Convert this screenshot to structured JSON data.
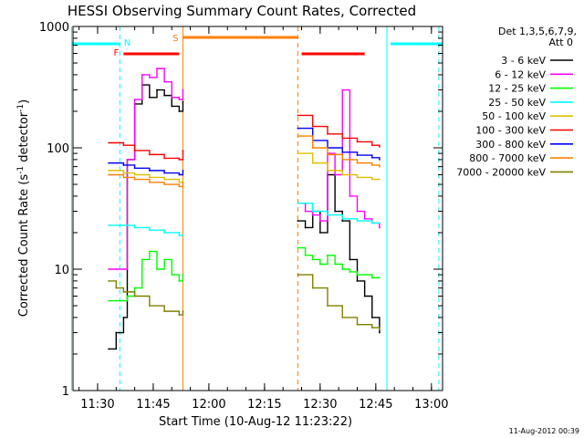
{
  "chart_data": {
    "type": "line",
    "title": "HESSI Observing Summary Count Rates, Corrected",
    "xlabel": "Start Time (10-Aug-12 11:23:22)",
    "ylabel_main": "Corrected Count Rate (s",
    "ylabel_sup1": "-1",
    "ylabel_mid": " detector",
    "ylabel_sup2": "-1",
    "ylabel_end": ")",
    "yscale": "log",
    "ylim": [
      1,
      1000
    ],
    "xlim": [
      "11:23:22",
      "13:03:00"
    ],
    "x_ticks": [
      "11:30",
      "11:45",
      "12:00",
      "12:15",
      "12:30",
      "12:45",
      "13:00"
    ],
    "y_ticks": [
      "1",
      "10",
      "100",
      "1000"
    ],
    "timestamp": "11-Aug-2012 00:39",
    "legend": {
      "placement": "right",
      "header1": "Det 1,3,5,6,7,9,",
      "header2": "Att 0"
    },
    "flags": [
      {
        "label": "F",
        "color": "#ff0000",
        "segments": [
          [
            "11:37",
            "11:52"
          ],
          [
            "12:25",
            "12:42"
          ]
        ]
      },
      {
        "label": "N",
        "color": "#00ffff",
        "segments": [
          [
            "11:23",
            "11:36"
          ],
          [
            "12:49",
            "13:03"
          ]
        ]
      },
      {
        "label": "S",
        "color": "#ff8000",
        "segments": [
          [
            "11:53",
            "12:24"
          ]
        ]
      }
    ],
    "vlines": [
      {
        "time": "11:23",
        "color": "#00ffff",
        "style": "solid"
      },
      {
        "time": "11:36",
        "color": "#00ffff",
        "style": "dashed"
      },
      {
        "time": "11:53",
        "color": "#ff8000",
        "style": "solid"
      },
      {
        "time": "12:24",
        "color": "#ff8000",
        "style": "dashed"
      },
      {
        "time": "12:48",
        "color": "#00ffff",
        "style": "solid"
      },
      {
        "time": "13:02",
        "color": "#00ffff",
        "style": "dashed"
      }
    ],
    "series": [
      {
        "name": "3 - 6 keV",
        "color": "#000000",
        "x": [
          "11:33",
          "11:35",
          "11:37",
          "11:38",
          "11:40",
          "11:42",
          "11:44",
          "11:46",
          "11:48",
          "11:50",
          "11:52",
          "11:53",
          "12:24",
          "12:26",
          "12:28",
          "12:30",
          "12:32",
          "12:34",
          "12:36",
          "12:38",
          "12:40",
          "12:42",
          "12:44",
          "12:46"
        ],
        "y": [
          2.2,
          3.0,
          4.0,
          80,
          230,
          330,
          260,
          300,
          270,
          220,
          200,
          240,
          25,
          22,
          30,
          20,
          60,
          30,
          25,
          12,
          8,
          6,
          4,
          3
        ]
      },
      {
        "name": "6 - 12 keV",
        "color": "#ff00ff",
        "x": [
          "11:33",
          "11:35",
          "11:37",
          "11:38",
          "11:40",
          "11:42",
          "11:44",
          "11:46",
          "11:48",
          "11:50",
          "11:52",
          "11:53",
          "12:24",
          "12:26",
          "12:28",
          "12:30",
          "12:32",
          "12:34",
          "12:36",
          "12:38",
          "12:40",
          "12:42",
          "12:44",
          "12:46"
        ],
        "y": [
          10,
          10,
          10,
          80,
          250,
          400,
          380,
          450,
          350,
          260,
          250,
          300,
          35,
          30,
          28,
          25,
          90,
          60,
          300,
          40,
          30,
          26,
          24,
          22
        ]
      },
      {
        "name": "12 - 25 keV",
        "color": "#00ff00",
        "x": [
          "11:33",
          "11:35",
          "11:37",
          "11:38",
          "11:40",
          "11:42",
          "11:44",
          "11:46",
          "11:48",
          "11:50",
          "11:52",
          "11:53",
          "12:24",
          "12:26",
          "12:28",
          "12:30",
          "12:32",
          "12:34",
          "12:36",
          "12:38",
          "12:40",
          "12:42",
          "12:44",
          "12:46"
        ],
        "y": [
          5.5,
          5.5,
          5.5,
          6,
          7,
          12,
          14,
          10,
          12,
          9,
          8,
          9,
          15,
          13,
          12,
          11,
          13,
          11,
          10,
          9.5,
          9,
          9,
          8.5,
          8.5
        ]
      },
      {
        "name": "25 - 50 keV",
        "color": "#00ffff",
        "x": [
          "11:33",
          "11:37",
          "11:40",
          "11:44",
          "11:48",
          "11:52",
          "11:53",
          "12:24",
          "12:28",
          "12:32",
          "12:36",
          "12:40",
          "12:44",
          "12:46"
        ],
        "y": [
          23,
          23,
          22,
          21,
          20,
          19,
          19,
          35,
          30,
          28,
          26,
          25,
          24,
          24
        ]
      },
      {
        "name": "50 - 100 keV",
        "color": "#e0c000",
        "x": [
          "11:33",
          "11:37",
          "11:40",
          "11:44",
          "11:48",
          "11:52",
          "11:53",
          "12:24",
          "12:28",
          "12:32",
          "12:36",
          "12:40",
          "12:44",
          "12:46"
        ],
        "y": [
          65,
          62,
          60,
          57,
          55,
          52,
          55,
          90,
          75,
          65,
          60,
          57,
          55,
          55
        ]
      },
      {
        "name": "100 - 300 keV",
        "color": "#ff0000",
        "x": [
          "11:33",
          "11:37",
          "11:40",
          "11:44",
          "11:48",
          "11:52",
          "11:53",
          "12:24",
          "12:28",
          "12:32",
          "12:36",
          "12:40",
          "12:44",
          "12:46"
        ],
        "y": [
          110,
          105,
          95,
          88,
          82,
          80,
          95,
          185,
          150,
          130,
          120,
          112,
          105,
          102
        ]
      },
      {
        "name": "300 - 800 keV",
        "color": "#0000ff",
        "x": [
          "11:33",
          "11:37",
          "11:40",
          "11:44",
          "11:48",
          "11:52",
          "11:53",
          "12:24",
          "12:28",
          "12:32",
          "12:36",
          "12:40",
          "12:44",
          "12:46"
        ],
        "y": [
          75,
          72,
          68,
          65,
          62,
          60,
          65,
          145,
          115,
          100,
          92,
          87,
          83,
          80
        ]
      },
      {
        "name": "800 - 7000 keV",
        "color": "#ff8000",
        "x": [
          "11:33",
          "11:37",
          "11:40",
          "11:44",
          "11:48",
          "11:52",
          "11:53",
          "12:24",
          "12:28",
          "12:32",
          "12:36",
          "12:40",
          "12:44",
          "12:46"
        ],
        "y": [
          60,
          57,
          55,
          52,
          50,
          48,
          52,
          125,
          100,
          88,
          80,
          75,
          72,
          70
        ]
      },
      {
        "name": "7000 - 20000 keV",
        "color": "#808000",
        "x": [
          "11:33",
          "11:35",
          "11:37",
          "11:40",
          "11:44",
          "11:48",
          "11:52",
          "11:53",
          "12:24",
          "12:28",
          "12:32",
          "12:36",
          "12:40",
          "12:44",
          "12:46"
        ],
        "y": [
          8,
          7,
          6.5,
          6,
          5,
          4.5,
          4.2,
          4.5,
          9,
          7,
          5,
          4,
          3.5,
          3.3,
          3.2
        ]
      }
    ]
  }
}
